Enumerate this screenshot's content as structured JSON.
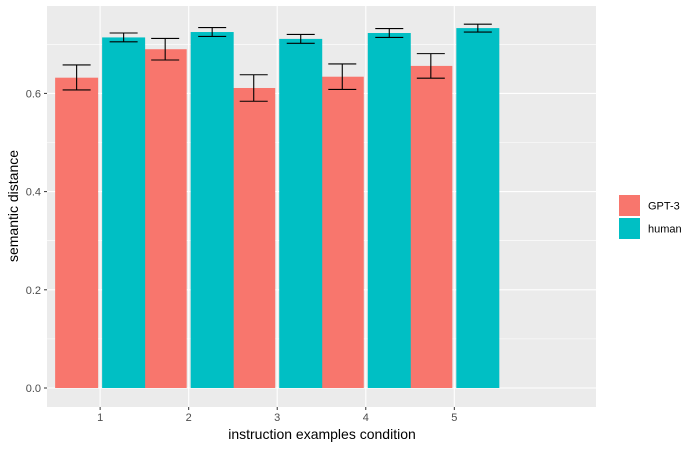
{
  "chart_data": {
    "type": "bar",
    "title": "",
    "xlabel": "instruction examples condition",
    "ylabel": "semantic distance",
    "categories": [
      "1",
      "2",
      "3",
      "4",
      "5"
    ],
    "ylim": [
      0,
      0.75
    ],
    "yticks": [
      0.0,
      0.2,
      0.4,
      0.6
    ],
    "ytick_labels": [
      "0.0",
      "0.2",
      "0.4",
      "0.6"
    ],
    "grid": true,
    "legend": "right",
    "series": [
      {
        "name": "GPT-3",
        "color": "#F8766D",
        "values": [
          0.632,
          0.69,
          0.611,
          0.634,
          0.656
        ],
        "error_low": [
          0.607,
          0.668,
          0.584,
          0.608,
          0.631
        ],
        "error_high": [
          0.658,
          0.712,
          0.638,
          0.66,
          0.681
        ]
      },
      {
        "name": "human",
        "color": "#00BFC4",
        "values": [
          0.714,
          0.725,
          0.711,
          0.723,
          0.733
        ],
        "error_low": [
          0.705,
          0.716,
          0.702,
          0.714,
          0.725
        ],
        "error_high": [
          0.723,
          0.734,
          0.72,
          0.732,
          0.741
        ]
      }
    ],
    "panel_background": "#EBEBEB",
    "grid_color": "#FFFFFF"
  }
}
